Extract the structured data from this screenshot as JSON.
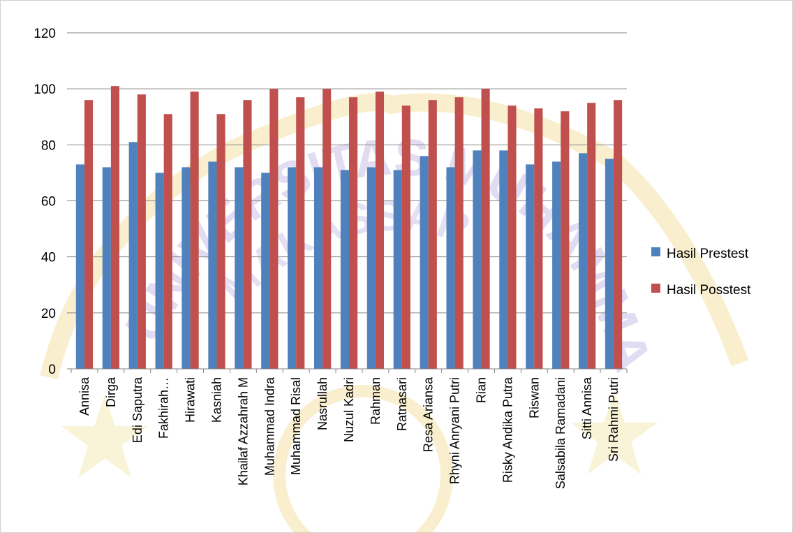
{
  "colors": {
    "prestest": "#4f81bd",
    "posstest": "#c0504d",
    "grid": "#868686",
    "watermark": "#e8c34a"
  },
  "chart_data": {
    "type": "bar",
    "title": "",
    "xlabel": "",
    "ylabel": "",
    "ylim": [
      0,
      120
    ],
    "yticks": [
      0,
      20,
      40,
      60,
      80,
      100,
      120
    ],
    "grid": true,
    "legend_position": "right",
    "categories": [
      "Annisa",
      "Dirga",
      "Edi Saputra",
      "Fakhirah…",
      "Hirawati",
      "Kasniah",
      "Khailaf Azzahrah M",
      "Muhammad Indra",
      "Muhammad Risal",
      "Nasrullah",
      "Nuzul Kadri",
      "Rahman",
      "Ratnasari",
      "Resa Ariansa",
      "Rhyni Anryani Putri",
      "Rian",
      "Risky Andika Putra",
      "Riswan",
      "Salsabila Ramadani",
      "Sitti Annisa",
      "Sri Rahmi Putri"
    ],
    "series": [
      {
        "name": "Hasil Prestest",
        "values": [
          73,
          72,
          81,
          70,
          72,
          74,
          72,
          70,
          72,
          72,
          71,
          72,
          71,
          76,
          72,
          78,
          78,
          73,
          74,
          77,
          75
        ]
      },
      {
        "name": "Hasil Posstest",
        "values": [
          96,
          101,
          98,
          91,
          99,
          91,
          96,
          100,
          97,
          100,
          97,
          99,
          94,
          96,
          97,
          100,
          94,
          93,
          92,
          95,
          96
        ]
      }
    ]
  },
  "watermark": {
    "arc_top": "UNIVERSITAS MUHAMMADIYAH",
    "arc_mid": "MAKASSAR"
  }
}
